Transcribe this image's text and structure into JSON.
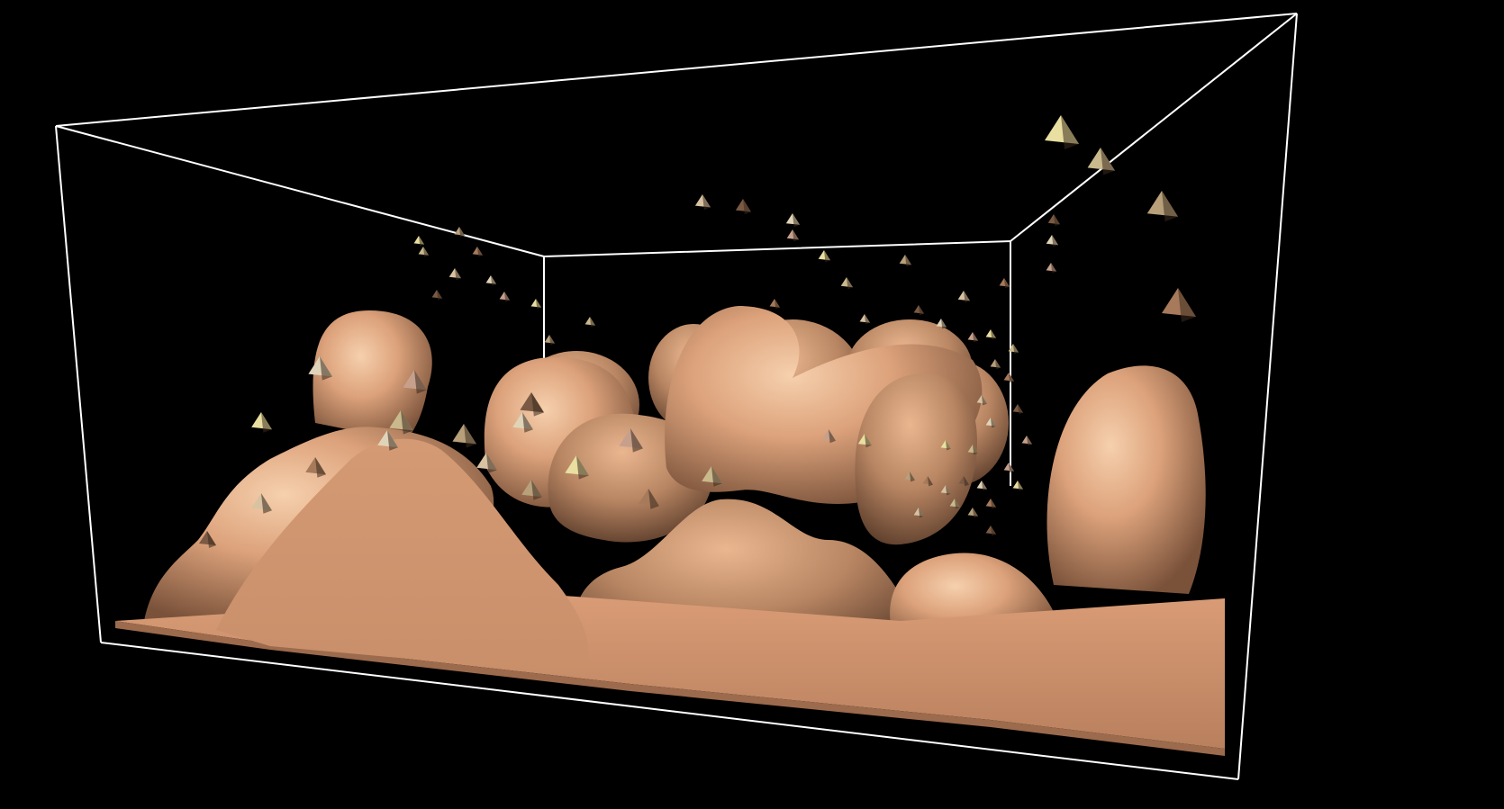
{
  "scene": {
    "background_color": "#000000",
    "bounding_box_color": "#ffffff",
    "terrain_base_color": "#d89a72",
    "terrain_highlight_color": "#f3c7a2",
    "terrain_shadow_color": "#6e4a34",
    "floor_color": "#cf9470",
    "particle_colors": [
      "#e8dfa0",
      "#c9b98c",
      "#b7a07a",
      "#a67a5a",
      "#d8c2a2",
      "#7a5a44",
      "#e0d4b8",
      "#c7a08c"
    ],
    "particle_shape": "tetrahedron",
    "particle_count_shown": "many"
  }
}
